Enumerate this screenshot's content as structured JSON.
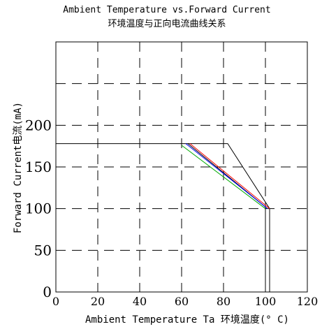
{
  "chart_data": {
    "type": "line",
    "title": "Ambient Temperature vs.Forward Current",
    "subtitle": "环境温度与正向电流曲线关系",
    "xlabel": "Ambient Temperature Ta 环境温度(° C)",
    "ylabel": "Forward Current电流(mA)",
    "xlim": [
      0,
      120
    ],
    "ylim": [
      0,
      300
    ],
    "xticks": [
      0,
      20,
      40,
      60,
      80,
      100,
      120
    ],
    "xtick_labels": [
      "0",
      "20",
      "40",
      "60",
      "80",
      "100",
      "120"
    ],
    "yticks": [
      0,
      50,
      100,
      150,
      200
    ],
    "ytick_labels": [
      "0",
      "50",
      "100",
      "150",
      "200"
    ],
    "grid": true,
    "series": [
      {
        "color": "#000000",
        "x": [
          0,
          82,
          102,
          102
        ],
        "y": [
          178,
          178,
          100,
          0
        ]
      },
      {
        "color": "#000000",
        "x": [
          100,
          100
        ],
        "y": [
          100,
          0
        ]
      },
      {
        "color": "#000000",
        "x": [
          63,
          101
        ],
        "y": [
          178,
          100
        ]
      },
      {
        "color": "#ff0000",
        "x": [
          64,
          102
        ],
        "y": [
          178,
          100
        ]
      },
      {
        "color": "#0000ff",
        "x": [
          62,
          101
        ],
        "y": [
          178,
          100
        ]
      },
      {
        "color": "#00aa00",
        "x": [
          60,
          100
        ],
        "y": [
          176,
          100
        ]
      }
    ]
  }
}
